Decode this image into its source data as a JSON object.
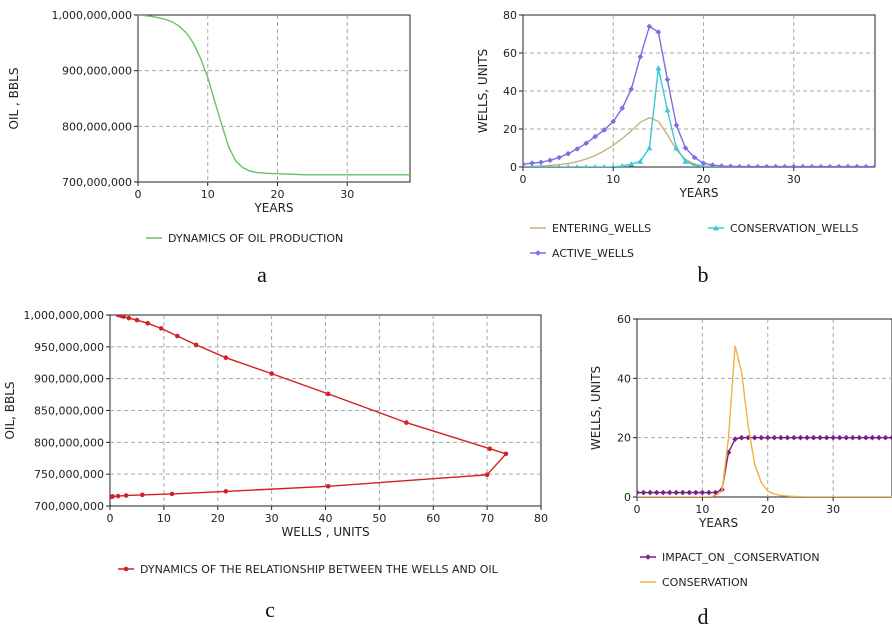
{
  "chart_data": [
    {
      "type": "line",
      "panel_caption": "a",
      "xlabel": "YEARS",
      "ylabel": "OIL , BBLS",
      "xlim": [
        0,
        39
      ],
      "ylim": [
        700000000,
        1000000000
      ],
      "xticks": [
        0,
        10,
        20,
        30
      ],
      "yticks": [
        700000000,
        800000000,
        900000000,
        1000000000
      ],
      "ytick_labels": [
        "700,000,000",
        "800,000,000",
        "900,000,000",
        "1,000,000,000"
      ],
      "grid": true,
      "legend_position": "bottom",
      "series": [
        {
          "name": "DYNAMICS OF OIL PRODUCTION",
          "color": "#66c466",
          "marker": "none",
          "x": [
            0,
            1,
            2,
            3,
            4,
            5,
            6,
            7,
            8,
            9,
            10,
            11,
            12,
            13,
            14,
            15,
            16,
            17,
            18,
            19,
            20,
            21,
            22,
            23,
            24,
            25,
            26,
            27,
            28,
            29,
            30,
            31,
            32,
            33,
            34,
            35,
            36,
            37,
            38,
            39
          ],
          "y": [
            1000000000,
            999000000,
            997500000,
            995000000,
            992000000,
            987000000,
            979000000,
            967000000,
            948000000,
            921000000,
            888000000,
            845000000,
            803000000,
            763000000,
            738000000,
            726000000,
            720000000,
            717000000,
            716000000,
            715500000,
            715000000,
            714500000,
            714000000,
            713500000,
            713000000,
            713000000,
            713000000,
            713000000,
            713000000,
            713000000,
            713000000,
            713000000,
            713000000,
            713000000,
            713000000,
            713000000,
            713000000,
            713000000,
            713000000,
            713000000
          ]
        }
      ]
    },
    {
      "type": "line",
      "panel_caption": "b",
      "xlabel": "YEARS",
      "ylabel": "WELLS, UNITS",
      "xlim": [
        0,
        39
      ],
      "ylim": [
        0,
        80
      ],
      "xticks": [
        0,
        10,
        20,
        30
      ],
      "yticks": [
        0,
        20,
        40,
        60,
        80
      ],
      "ytick_labels": [
        "0",
        "20",
        "40",
        "60",
        "80"
      ],
      "grid": true,
      "legend_position": "bottom",
      "series": [
        {
          "name": "ENTERING_WELLS",
          "color": "#c8b07a",
          "marker": "none",
          "x": [
            0,
            1,
            2,
            3,
            4,
            5,
            6,
            7,
            8,
            9,
            10,
            11,
            12,
            13,
            14,
            15,
            16,
            17,
            18,
            19,
            20,
            21,
            22,
            23,
            24,
            25,
            26,
            27,
            28,
            29,
            30,
            31,
            32,
            33,
            34,
            35,
            36,
            37,
            38,
            39
          ],
          "y": [
            0.2,
            0.3,
            0.5,
            0.8,
            1.2,
            1.8,
            2.8,
            4.2,
            6,
            8.5,
            11.5,
            15,
            19,
            23.5,
            26,
            24,
            17,
            9,
            4,
            1.5,
            0.5,
            0.2,
            0,
            0,
            0,
            0,
            0,
            0,
            0,
            0,
            0,
            0,
            0,
            0,
            0,
            0,
            0,
            0,
            0,
            0
          ]
        },
        {
          "name": "CONSERVATION_WELLS",
          "color": "#3cc8d8",
          "marker": "triangle",
          "x": [
            0,
            1,
            2,
            3,
            4,
            5,
            6,
            7,
            8,
            9,
            10,
            11,
            12,
            13,
            14,
            15,
            16,
            17,
            18,
            19,
            20,
            21,
            22,
            23,
            24,
            25,
            26,
            27,
            28,
            29,
            30,
            31,
            32,
            33,
            34,
            35,
            36,
            37,
            38,
            39
          ],
          "y": [
            0,
            0,
            0,
            0,
            0,
            0,
            0,
            0,
            0,
            0,
            0,
            0.5,
            1.5,
            3,
            10,
            52,
            30,
            10,
            3,
            0.8,
            0.2,
            0,
            0,
            0,
            0,
            0,
            0,
            0,
            0,
            0,
            0,
            0,
            0,
            0,
            0,
            0,
            0,
            0,
            0,
            0
          ]
        },
        {
          "name": "ACTIVE_WELLS",
          "color": "#7b6ee6",
          "marker": "diamond",
          "x": [
            0,
            1,
            2,
            3,
            4,
            5,
            6,
            7,
            8,
            9,
            10,
            11,
            12,
            13,
            14,
            15,
            16,
            17,
            18,
            19,
            20,
            21,
            22,
            23,
            24,
            25,
            26,
            27,
            28,
            29,
            30,
            31,
            32,
            33,
            34,
            35,
            36,
            37,
            38,
            39
          ],
          "y": [
            1.5,
            2,
            2.5,
            3.5,
            5,
            7,
            9.5,
            12.5,
            16,
            19.5,
            24,
            31,
            41,
            58,
            74,
            71,
            46,
            22,
            10,
            5,
            2,
            1,
            0.5,
            0.3,
            0.2,
            0.2,
            0.2,
            0.2,
            0.2,
            0.2,
            0.2,
            0.2,
            0.2,
            0.2,
            0.2,
            0.2,
            0.2,
            0.2,
            0.2,
            0.2
          ]
        }
      ]
    },
    {
      "type": "line",
      "panel_caption": "c",
      "xlabel": "WELLS , UNITS",
      "ylabel": "OIL, BBLS",
      "xlim": [
        0,
        80
      ],
      "ylim": [
        700000000,
        1000000000
      ],
      "xticks": [
        0,
        10,
        20,
        30,
        40,
        50,
        60,
        70,
        80
      ],
      "yticks": [
        700000000,
        750000000,
        800000000,
        850000000,
        900000000,
        950000000,
        1000000000
      ],
      "ytick_labels": [
        "700,000,000",
        "750,000,000",
        "800,000,000",
        "850,000,000",
        "900,000,000",
        "950,000,000",
        "1,000,000,000"
      ],
      "grid": true,
      "legend_position": "bottom",
      "series": [
        {
          "name": "DYNAMICS OF THE RELATIONSHIP BETWEEN THE WELLS AND OIL",
          "color": "#d42020",
          "marker": "circle",
          "x": [
            1.5,
            2,
            2.5,
            3.5,
            5,
            7,
            9.5,
            12.5,
            16,
            21.5,
            30,
            40.5,
            55,
            70.5,
            73.5,
            70,
            40.5,
            21.5,
            11.5,
            6,
            3,
            1.5,
            0.5,
            0.2,
            0
          ],
          "y": [
            1000000000,
            999000000,
            997500000,
            995000000,
            992000000,
            987000000,
            979000000,
            967000000,
            953000000,
            933000000,
            908000000,
            876000000,
            831000000,
            790000000,
            782000000,
            749000000,
            731000000,
            723000000,
            719000000,
            717500000,
            716500000,
            715500000,
            715000000,
            714500000,
            714000000
          ]
        }
      ]
    },
    {
      "type": "line",
      "panel_caption": "d",
      "xlabel": "YEARS",
      "ylabel": "WELLS, UNITS",
      "xlim": [
        0,
        39
      ],
      "ylim": [
        0,
        60
      ],
      "xticks": [
        0,
        10,
        20,
        30
      ],
      "yticks": [
        0,
        20,
        40,
        60
      ],
      "ytick_labels": [
        "0",
        "20",
        "40",
        "60"
      ],
      "grid": true,
      "legend_position": "bottom",
      "series": [
        {
          "name": "IMPACT_ON _CONSERVATION",
          "color": "#7a1f8a",
          "marker": "diamond",
          "x": [
            0,
            1,
            2,
            3,
            4,
            5,
            6,
            7,
            8,
            9,
            10,
            11,
            12,
            13,
            14,
            15,
            16,
            17,
            18,
            19,
            20,
            21,
            22,
            23,
            24,
            25,
            26,
            27,
            28,
            29,
            30,
            31,
            32,
            33,
            34,
            35,
            36,
            37,
            38,
            39
          ],
          "y": [
            1.5,
            1.5,
            1.5,
            1.5,
            1.5,
            1.5,
            1.5,
            1.5,
            1.5,
            1.5,
            1.5,
            1.5,
            1.5,
            2.5,
            15,
            19.5,
            20,
            20,
            20,
            20,
            20,
            20,
            20,
            20,
            20,
            20,
            20,
            20,
            20,
            20,
            20,
            20,
            20,
            20,
            20,
            20,
            20,
            20,
            20,
            20
          ]
        },
        {
          "name": "CONSERVATION",
          "color": "#f2b23e",
          "marker": "none",
          "x": [
            0,
            1,
            2,
            3,
            4,
            5,
            6,
            7,
            8,
            9,
            10,
            11,
            12,
            13,
            14,
            15,
            16,
            17,
            18,
            19,
            20,
            21,
            22,
            23,
            24,
            25,
            26,
            27,
            28,
            29,
            30,
            31,
            32,
            33,
            34,
            35,
            36,
            37,
            38,
            39
          ],
          "y": [
            0,
            0,
            0,
            0,
            0,
            0,
            0,
            0,
            0,
            0,
            0,
            0,
            0.5,
            2,
            20,
            51,
            42,
            24,
            11,
            5,
            2,
            1,
            0.5,
            0.3,
            0.2,
            0.1,
            0,
            0,
            0,
            0,
            0,
            0,
            0,
            0,
            0,
            0,
            0,
            0,
            0,
            0
          ]
        }
      ]
    }
  ]
}
